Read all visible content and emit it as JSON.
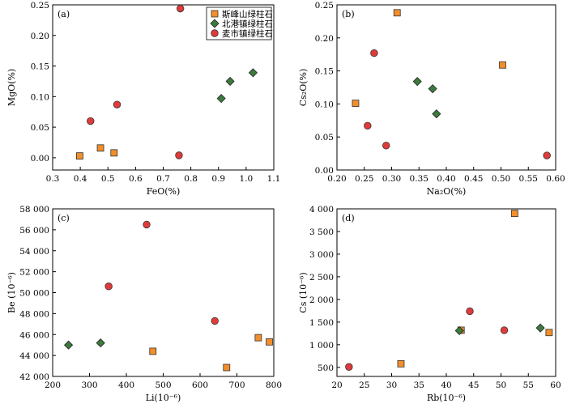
{
  "series_styles": [
    {
      "name": "斯峰山绿柱石",
      "shape": "square",
      "color": "#f28e2b"
    },
    {
      "name": "北港镇绿柱石",
      "shape": "diamond",
      "color": "#3d7a3d"
    },
    {
      "name": "麦市镇绿柱石",
      "shape": "circle",
      "color": "#e03a3a"
    }
  ],
  "chart_data": [
    {
      "type": "scatter",
      "panel": "(a)",
      "xlabel": "FeO(%)",
      "ylabel": "MgO(%)",
      "xlim": [
        0.3,
        1.1
      ],
      "ylim": [
        -0.02,
        0.25
      ],
      "xticks": [
        "0.3",
        "0.4",
        "0.5",
        "0.6",
        "0.7",
        "0.8",
        "0.9",
        "1.0",
        "1.1"
      ],
      "xtick_values": [
        0.3,
        0.4,
        0.5,
        0.6,
        0.7,
        0.8,
        0.9,
        1.0,
        1.1
      ],
      "yticks": [
        "0.00",
        "0.05",
        "0.10",
        "0.15",
        "0.20",
        "0.25"
      ],
      "ytick_values": [
        0,
        0.05,
        0.1,
        0.15,
        0.2,
        0.25
      ],
      "legend": "top-left",
      "series": [
        {
          "name": "斯峰山绿柱石",
          "points": [
            [
              0.398,
              0.003
            ],
            [
              0.473,
              0.016
            ],
            [
              0.522,
              0.008
            ]
          ]
        },
        {
          "name": "北港镇绿柱石",
          "points": [
            [
              0.91,
              0.097
            ],
            [
              0.942,
              0.125
            ],
            [
              1.025,
              0.139
            ]
          ]
        },
        {
          "name": "麦市镇绿柱石",
          "points": [
            [
              0.437,
              0.06
            ],
            [
              0.533,
              0.087
            ],
            [
              0.757,
              0.004
            ],
            [
              0.762,
              0.244
            ]
          ]
        }
      ]
    },
    {
      "type": "scatter",
      "panel": "(b)",
      "xlabel": "Na₂O(%)",
      "ylabel": "Cs₂O(%)",
      "xlim": [
        0.2,
        0.6
      ],
      "ylim": [
        0,
        0.25
      ],
      "xticks": [
        "0.20",
        "0.25",
        "0.30",
        "0.35",
        "0.40",
        "0.45",
        "0.50",
        "0.55",
        "0.60"
      ],
      "xtick_values": [
        0.2,
        0.25,
        0.3,
        0.35,
        0.4,
        0.45,
        0.5,
        0.55,
        0.6
      ],
      "yticks": [
        "0.00",
        "0.05",
        "0.10",
        "0.15",
        "0.20",
        "0.25"
      ],
      "ytick_values": [
        0,
        0.05,
        0.1,
        0.15,
        0.2,
        0.25
      ],
      "series": [
        {
          "name": "斯峰山绿柱石",
          "points": [
            [
              0.234,
              0.101
            ],
            [
              0.31,
              0.238
            ],
            [
              0.503,
              0.159
            ]
          ]
        },
        {
          "name": "北港镇绿柱石",
          "points": [
            [
              0.347,
              0.134
            ],
            [
              0.375,
              0.123
            ],
            [
              0.382,
              0.085
            ]
          ]
        },
        {
          "name": "麦市镇绿柱石",
          "points": [
            [
              0.256,
              0.067
            ],
            [
              0.268,
              0.177
            ],
            [
              0.29,
              0.037
            ],
            [
              0.584,
              0.022
            ]
          ]
        }
      ]
    },
    {
      "type": "scatter",
      "panel": "(c)",
      "xlabel": "Li(10⁻⁶)",
      "ylabel": "Be (10⁻⁶)",
      "xlim": [
        200,
        800
      ],
      "ylim": [
        42000,
        58000
      ],
      "xticks": [
        "200",
        "300",
        "400",
        "500",
        "600",
        "700",
        "800"
      ],
      "xtick_values": [
        200,
        300,
        400,
        500,
        600,
        700,
        800
      ],
      "yticks": [
        "42 000",
        "44 000",
        "46 000",
        "48 000",
        "50 000",
        "52 000",
        "54 000",
        "56 000",
        "58 000"
      ],
      "ytick_values": [
        42000,
        44000,
        46000,
        48000,
        50000,
        52000,
        54000,
        56000,
        58000
      ],
      "series": [
        {
          "name": "斯峰山绿柱石",
          "points": [
            [
              472,
              44400
            ],
            [
              672,
              42850
            ],
            [
              758,
              45700
            ],
            [
              788,
              45300
            ]
          ]
        },
        {
          "name": "北港镇绿柱石",
          "points": [
            [
              243,
              45000
            ],
            [
              330,
              45200
            ]
          ]
        },
        {
          "name": "麦市镇绿柱石",
          "points": [
            [
              352,
              50600
            ],
            [
              455,
              56500
            ],
            [
              640,
              47300
            ]
          ]
        }
      ]
    },
    {
      "type": "scatter",
      "panel": "(d)",
      "xlabel": "Rb(10⁻⁶)",
      "ylabel": "Cs (10⁻⁶)",
      "xlim": [
        20,
        60
      ],
      "ylim": [
        300,
        4000
      ],
      "xticks": [
        "20",
        "25",
        "30",
        "35",
        "40",
        "45",
        "50",
        "55",
        "60"
      ],
      "xtick_values": [
        20,
        25,
        30,
        35,
        40,
        45,
        50,
        55,
        60
      ],
      "yticks": [
        "500",
        "1 000",
        "1 500",
        "2 000",
        "2 500",
        "3 000",
        "3 500",
        "4 000"
      ],
      "ytick_values": [
        500,
        1000,
        1500,
        2000,
        2500,
        3000,
        3500,
        4000
      ],
      "series": [
        {
          "name": "斯峰山绿柱石",
          "points": [
            [
              31.7,
              580
            ],
            [
              42.7,
              1320
            ],
            [
              52.5,
              3900
            ],
            [
              58.8,
              1270
            ]
          ]
        },
        {
          "name": "北港镇绿柱石",
          "points": [
            [
              42.4,
              1310
            ],
            [
              57.2,
              1370
            ]
          ]
        },
        {
          "name": "麦市镇绿柱石",
          "points": [
            [
              22.2,
              510
            ],
            [
              44.3,
              1740
            ],
            [
              50.6,
              1320
            ]
          ]
        }
      ]
    }
  ]
}
